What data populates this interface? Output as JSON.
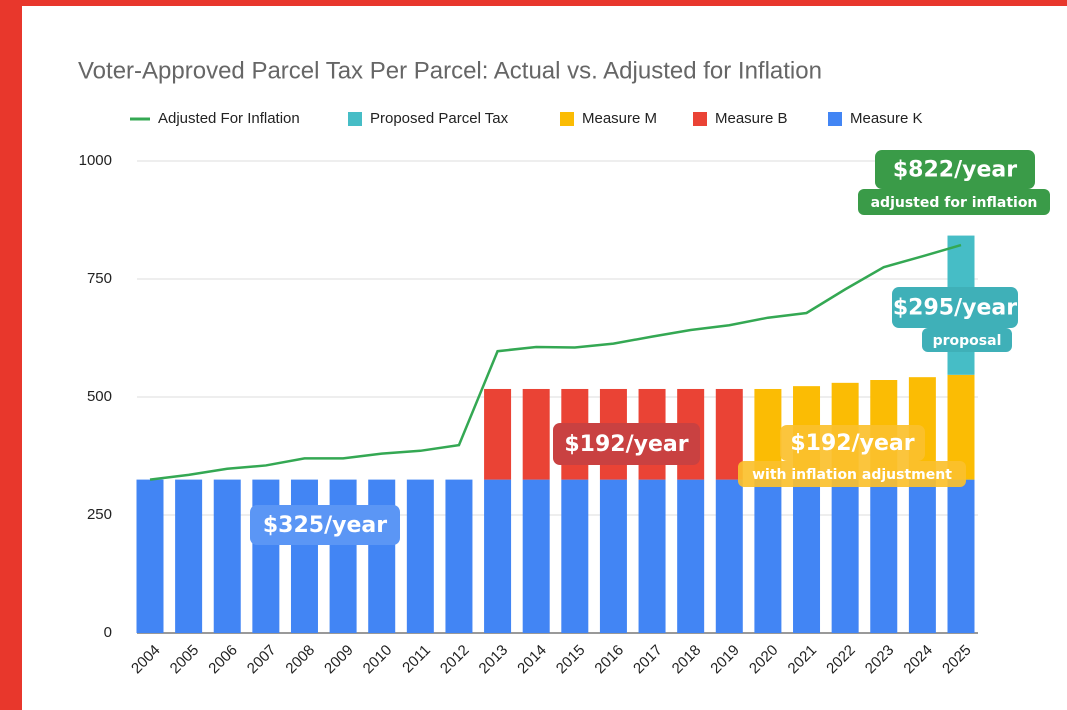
{
  "chart_data": {
    "type": "combo",
    "stacked": true,
    "title": "Voter-Approved Parcel Tax Per Parcel: Actual vs. Adjusted for Inflation",
    "categories": [
      "2004",
      "2005",
      "2006",
      "2007",
      "2008",
      "2009",
      "2010",
      "2011",
      "2012",
      "2013",
      "2014",
      "2015",
      "2016",
      "2017",
      "2018",
      "2019",
      "2020",
      "2021",
      "2022",
      "2023",
      "2024",
      "2025"
    ],
    "series": [
      {
        "name": "Adjusted For Inflation",
        "type": "line",
        "color": "#34a853",
        "values": [
          325,
          335,
          348,
          355,
          370,
          370,
          380,
          386,
          398,
          597,
          606,
          605,
          613,
          628,
          642,
          652,
          668,
          678,
          728,
          775,
          798,
          822
        ]
      },
      {
        "name": "Proposed Parcel Tax",
        "type": "bar",
        "color": "#46bdc6",
        "values": [
          null,
          null,
          null,
          null,
          null,
          null,
          null,
          null,
          null,
          null,
          null,
          null,
          null,
          null,
          null,
          null,
          null,
          null,
          null,
          null,
          null,
          295
        ]
      },
      {
        "name": "Measure M",
        "type": "bar",
        "color": "#fbbc04",
        "values": [
          null,
          null,
          null,
          null,
          null,
          null,
          null,
          null,
          null,
          null,
          null,
          null,
          null,
          null,
          null,
          null,
          192,
          198,
          205,
          211,
          217,
          222
        ]
      },
      {
        "name": "Measure B",
        "type": "bar",
        "color": "#ea4335",
        "values": [
          null,
          null,
          null,
          null,
          null,
          null,
          null,
          null,
          null,
          192,
          192,
          192,
          192,
          192,
          192,
          192,
          null,
          null,
          null,
          null,
          null,
          null
        ]
      },
      {
        "name": "Measure K",
        "type": "bar",
        "color": "#4285f4",
        "values": [
          325,
          325,
          325,
          325,
          325,
          325,
          325,
          325,
          325,
          325,
          325,
          325,
          325,
          325,
          325,
          325,
          325,
          325,
          325,
          325,
          325,
          325
        ]
      }
    ],
    "ylim": [
      0,
      1000
    ],
    "yticks": [
      0,
      250,
      500,
      750,
      1000
    ],
    "grid": true,
    "legend": "top",
    "annotations": [
      {
        "text": "$325/year"
      },
      {
        "text": "$192/year"
      },
      {
        "text": "$192/year",
        "subtext": "with inflation adjustment"
      },
      {
        "text": "$295/year",
        "subtext": "proposal"
      },
      {
        "text": "$822/year",
        "subtext": "adjusted for inflation"
      }
    ]
  }
}
